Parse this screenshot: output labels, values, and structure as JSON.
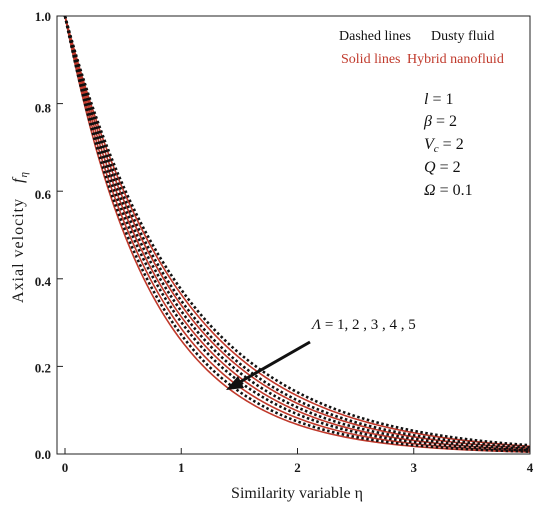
{
  "chart_data": {
    "type": "line",
    "xlabel": "Similarity variable η",
    "ylabel_text": "Axial velocity",
    "ylabel_symbol": "f",
    "ylabel_subscript": "η",
    "xlim": [
      0,
      4
    ],
    "ylim": [
      0,
      1.0
    ],
    "x_ticks": [
      "0",
      "1",
      "2",
      "3",
      "4"
    ],
    "y_ticks": [
      "0.0",
      "0.2",
      "0.4",
      "0.6",
      "0.8",
      "1.0"
    ],
    "grid": false,
    "legend": {
      "dashed_label": "Dashed lines",
      "dashed_meaning": "Dusty fluid",
      "solid_label": "Solid lines",
      "solid_meaning": "Hybrid nanofluid"
    },
    "parameters": [
      {
        "symbol": "l",
        "value": "1"
      },
      {
        "symbol": "β",
        "value": "2"
      },
      {
        "symbol": "V",
        "subscript": "c",
        "value": "2"
      },
      {
        "symbol": "Q",
        "value": "2"
      },
      {
        "symbol": "Ω",
        "value": "0.1"
      }
    ],
    "annotation": {
      "symbol": "Λ",
      "values": "1, 2 , 3 , 4 , 5",
      "arrow_direction": "down-left"
    },
    "x_samples": [
      0,
      0.1,
      0.2,
      0.3,
      0.4,
      0.5,
      0.6,
      0.7,
      0.8,
      0.9,
      1.0,
      1.2,
      1.4,
      1.6,
      1.8,
      2.0,
      2.25,
      2.5,
      2.75,
      3.0,
      3.25,
      3.5,
      3.75,
      4.0
    ],
    "series": [
      {
        "style": "solid",
        "group": "hybrid",
        "decay": 1.35
      },
      {
        "style": "solid",
        "group": "hybrid",
        "decay": 1.25
      },
      {
        "style": "solid",
        "group": "hybrid",
        "decay": 1.16
      },
      {
        "style": "solid",
        "group": "hybrid",
        "decay": 1.08
      },
      {
        "style": "solid",
        "group": "hybrid",
        "decay": 1.01
      },
      {
        "style": "dashed",
        "group": "dusty",
        "decay": 1.3
      },
      {
        "style": "dashed",
        "group": "dusty",
        "decay": 1.2
      },
      {
        "style": "dashed",
        "group": "dusty",
        "decay": 1.12
      },
      {
        "style": "dashed",
        "group": "dusty",
        "decay": 1.05
      },
      {
        "style": "dashed",
        "group": "dusty",
        "decay": 0.98
      }
    ]
  },
  "colors": {
    "solid": "#c0392b",
    "dashed": "#111111",
    "axis": "#222222",
    "legend_solid_text": "#c0392b",
    "legend_dashed_text": "#111111"
  }
}
